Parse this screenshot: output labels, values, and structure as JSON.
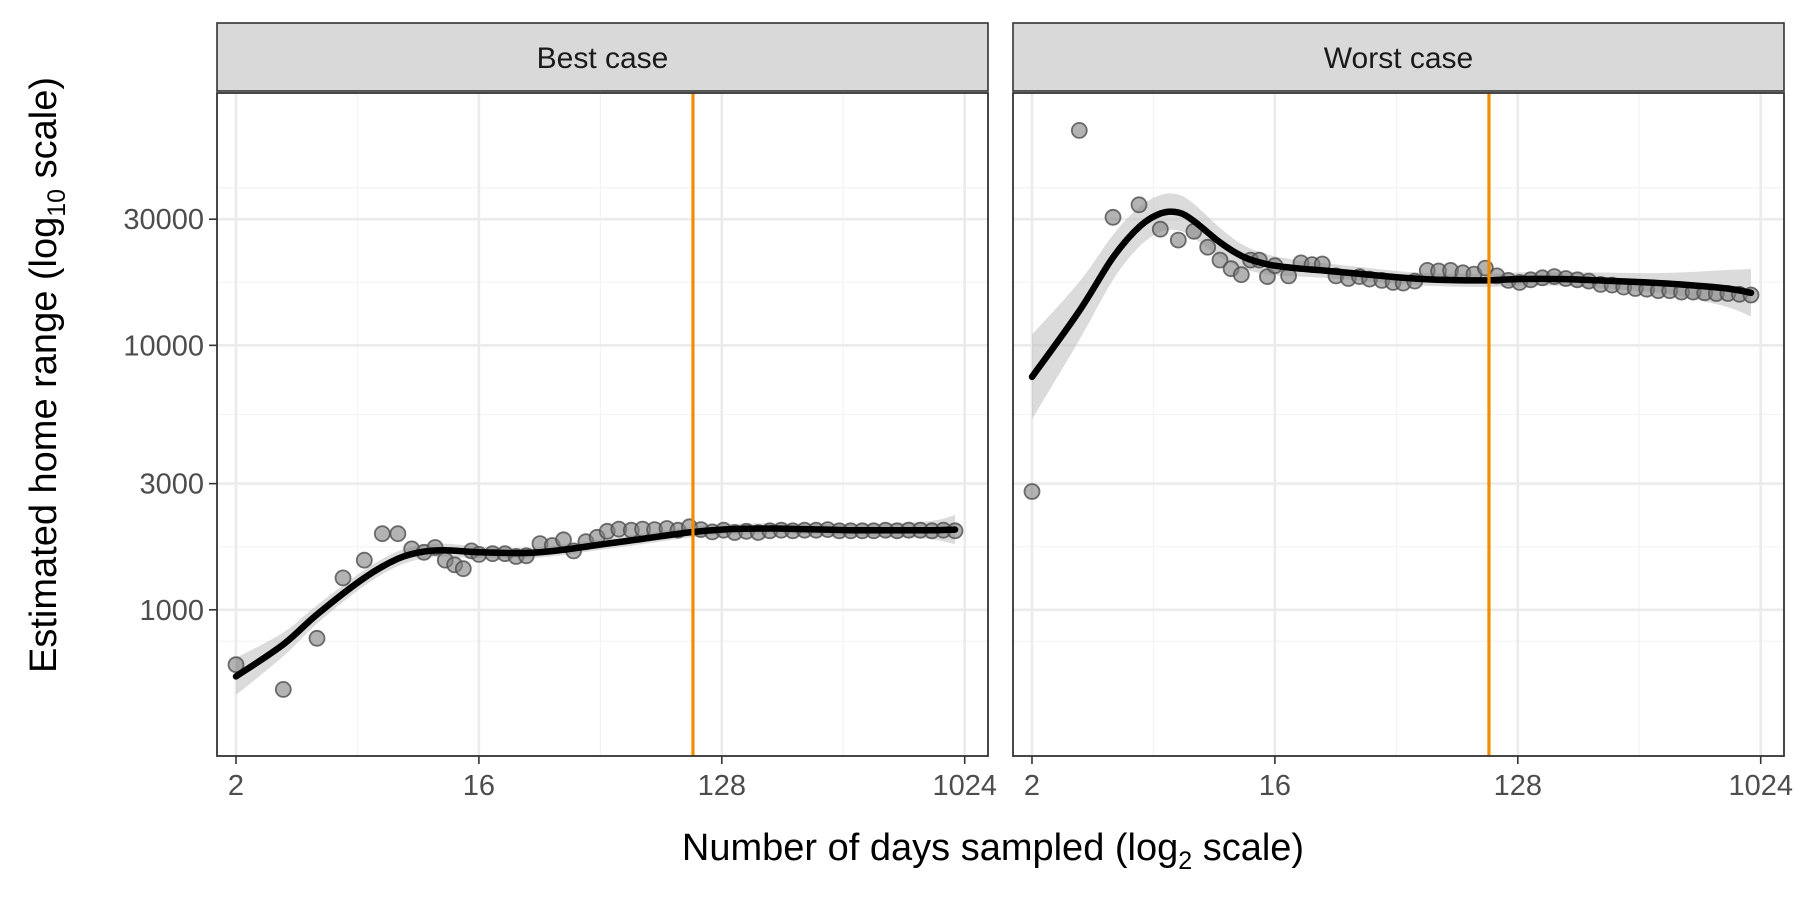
{
  "figure": {
    "ylabel_main": "Estimated home range (log",
    "ylabel_sub": "10",
    "ylabel_tail": " scale)",
    "xlabel_main": "Number of days sampled (log",
    "xlabel_sub": "2",
    "xlabel_tail": " scale)"
  },
  "chart_data": [
    {
      "type": "scatter",
      "panel": "Best case",
      "x_scale": "log2",
      "y_scale": "log10",
      "xlim": [
        1.7,
        1250
      ],
      "ylim": [
        280,
        90000
      ],
      "xticks": [
        2,
        16,
        128,
        1024
      ],
      "xtick_labels": [
        "2",
        "16",
        "128",
        "1024"
      ],
      "yticks": [
        1000,
        3000,
        10000,
        30000
      ],
      "ytick_labels": [
        "1000",
        "3000",
        "10000",
        "30000"
      ],
      "reference_line_x": 100,
      "reference_line_color": "#F28C00",
      "points": {
        "x": [
          2,
          3,
          4,
          5,
          6,
          7,
          8,
          9,
          10,
          11,
          12,
          13,
          14,
          15,
          16,
          18,
          20,
          22,
          24,
          27,
          30,
          33,
          36,
          40,
          44,
          48,
          53,
          59,
          65,
          72,
          80,
          88,
          97,
          107,
          118,
          130,
          143,
          158,
          175,
          193,
          213,
          235,
          260,
          287,
          317,
          350,
          386,
          426,
          470,
          520,
          574,
          634,
          700,
          773,
          853,
          942
        ],
        "y": [
          620,
          500,
          780,
          1320,
          1540,
          1940,
          1940,
          1700,
          1650,
          1720,
          1540,
          1480,
          1430,
          1670,
          1620,
          1630,
          1630,
          1590,
          1600,
          1780,
          1750,
          1840,
          1670,
          1810,
          1880,
          1980,
          2020,
          2000,
          2020,
          2010,
          2030,
          2000,
          2060,
          2010,
          1970,
          2000,
          1960,
          1980,
          1960,
          1990,
          2000,
          1990,
          2000,
          2000,
          2010,
          1990,
          1990,
          1990,
          1990,
          2000,
          1990,
          2000,
          2000,
          1990,
          2000,
          1990
        ]
      },
      "smooth": {
        "x": [
          2,
          3,
          4,
          6,
          8,
          10,
          12,
          16,
          24,
          32,
          48,
          64,
          96,
          128,
          192,
          256,
          384,
          512,
          768,
          942
        ],
        "y": [
          560,
          740,
          960,
          1320,
          1560,
          1660,
          1680,
          1650,
          1640,
          1680,
          1780,
          1850,
          1960,
          2010,
          2030,
          2020,
          2000,
          2000,
          2000,
          2010
        ],
        "ci_half_width_log10": [
          0.07,
          0.045,
          0.035,
          0.03,
          0.028,
          0.026,
          0.025,
          0.022,
          0.02,
          0.02,
          0.02,
          0.02,
          0.02,
          0.02,
          0.02,
          0.02,
          0.022,
          0.025,
          0.035,
          0.055
        ]
      }
    },
    {
      "type": "scatter",
      "panel": "Worst case",
      "x_scale": "log2",
      "y_scale": "log10",
      "xlim": [
        1.7,
        1250
      ],
      "ylim": [
        280,
        90000
      ],
      "xticks": [
        2,
        16,
        128,
        1024
      ],
      "xtick_labels": [
        "2",
        "16",
        "128",
        "1024"
      ],
      "yticks": [
        1000,
        3000,
        10000,
        30000
      ],
      "ytick_labels": [
        "1000",
        "3000",
        "10000",
        "30000"
      ],
      "reference_line_x": 100,
      "reference_line_color": "#F28C00",
      "points": {
        "x": [
          2,
          3,
          4,
          5,
          6,
          7,
          8,
          9,
          10,
          11,
          12,
          13,
          14,
          15,
          16,
          18,
          20,
          22,
          24,
          27,
          30,
          33,
          36,
          40,
          44,
          48,
          53,
          59,
          65,
          72,
          80,
          88,
          97,
          107,
          118,
          130,
          143,
          158,
          175,
          193,
          213,
          235,
          260,
          287,
          317,
          350,
          386,
          426,
          470,
          520,
          574,
          634,
          700,
          773,
          853,
          942
        ],
        "y": [
          2800,
          65000,
          30500,
          34000,
          27500,
          25000,
          27000,
          23500,
          21000,
          19500,
          18500,
          21000,
          21000,
          18200,
          20000,
          18300,
          20500,
          20200,
          20300,
          18300,
          17900,
          18200,
          17800,
          17600,
          17300,
          17200,
          17500,
          19200,
          19100,
          19200,
          18800,
          18600,
          19600,
          18300,
          17600,
          17300,
          17700,
          18000,
          18200,
          17900,
          17700,
          17500,
          17000,
          16900,
          16600,
          16400,
          16300,
          16100,
          16100,
          15900,
          15900,
          15800,
          15700,
          15700,
          15600,
          15500
        ]
      },
      "smooth": {
        "x": [
          2,
          3,
          4,
          5,
          6,
          7,
          8,
          10,
          12,
          14,
          16,
          20,
          24,
          32,
          48,
          64,
          96,
          128,
          192,
          256,
          384,
          512,
          768,
          942
        ],
        "y": [
          7600,
          13500,
          21500,
          28000,
          31500,
          31800,
          29500,
          24500,
          21800,
          20600,
          20000,
          19500,
          19200,
          18700,
          18000,
          17700,
          17600,
          17800,
          17800,
          17600,
          17300,
          17000,
          16400,
          15800
        ],
        "ci_half_width_log10": [
          0.16,
          0.11,
          0.085,
          0.075,
          0.07,
          0.068,
          0.065,
          0.055,
          0.045,
          0.04,
          0.036,
          0.03,
          0.028,
          0.026,
          0.024,
          0.024,
          0.025,
          0.025,
          0.026,
          0.03,
          0.035,
          0.045,
          0.07,
          0.09
        ]
      }
    }
  ],
  "colors": {
    "panel_border": "#333333",
    "strip_fill": "#D9D9D9",
    "grid_major": "#EBEBEB",
    "grid_minor": "#F4F4F4",
    "point_fill": "#808080",
    "point_stroke": "#4D4D4D",
    "smooth_line": "#000000",
    "ribbon": "#BEBEBE",
    "tick_text": "#4D4D4D"
  }
}
